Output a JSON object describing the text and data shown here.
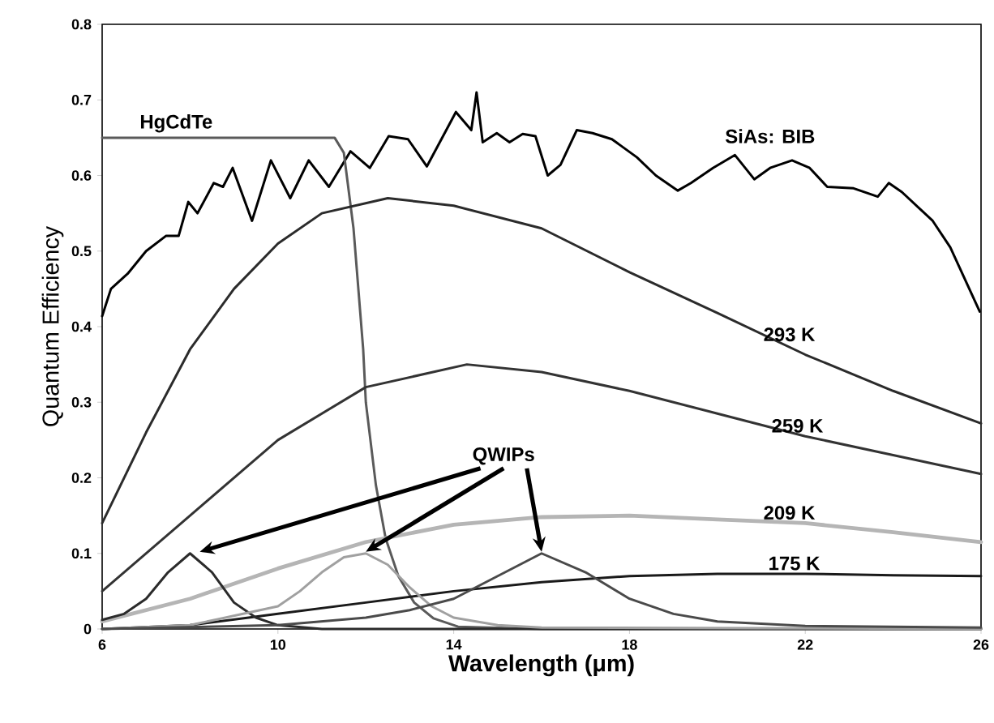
{
  "chart_data": {
    "type": "line",
    "xlabel": "Wavelength (μm)",
    "ylabel": "Quantum Efficiency",
    "xlim": [
      6,
      26
    ],
    "ylim": [
      0,
      0.8
    ],
    "xticks": [
      6,
      10,
      14,
      18,
      22,
      26
    ],
    "yticks": [
      0,
      0.1,
      0.2,
      0.3,
      0.4,
      0.5,
      0.6,
      0.7,
      0.8
    ],
    "marker": "none",
    "line_style": "solid",
    "annotations": [
      {
        "text": "QWIPs",
        "x": 12,
        "y": 0.1
      }
    ],
    "series": [
      {
        "name": "SiAs: BIB",
        "color": "#000000",
        "x": [
          6,
          6.2,
          6.58,
          7.0,
          7.45,
          7.74,
          7.96,
          8.17,
          8.54,
          8.75,
          8.97,
          9.41,
          9.84,
          10.28,
          10.7,
          11.16,
          11.65,
          12.09,
          12.52,
          12.96,
          13.39,
          14.05,
          14.4,
          14.52,
          14.66,
          14.98,
          15.27,
          15.57,
          15.86,
          16.14,
          16.43,
          16.8,
          17.16,
          17.6,
          18.17,
          18.6,
          19.1,
          19.4,
          19.9,
          20.4,
          20.84,
          21.2,
          21.7,
          22.1,
          22.5,
          23.1,
          23.65,
          23.9,
          24.2,
          24.9,
          25.3,
          25.97
        ],
        "values": [
          0.414,
          0.45,
          0.47,
          0.5,
          0.52,
          0.52,
          0.565,
          0.55,
          0.59,
          0.585,
          0.61,
          0.54,
          0.62,
          0.57,
          0.62,
          0.585,
          0.632,
          0.61,
          0.652,
          0.648,
          0.612,
          0.684,
          0.66,
          0.71,
          0.644,
          0.656,
          0.644,
          0.655,
          0.652,
          0.6,
          0.614,
          0.66,
          0.656,
          0.648,
          0.624,
          0.6,
          0.58,
          0.59,
          0.61,
          0.627,
          0.595,
          0.61,
          0.62,
          0.61,
          0.585,
          0.583,
          0.572,
          0.59,
          0.578,
          0.54,
          0.505,
          0.42
        ]
      },
      {
        "name": "HgCdTe",
        "color": "#5a5a5a",
        "x": [
          6,
          11.29,
          11.5,
          11.72,
          11.94,
          12.0,
          12.23,
          12.45,
          12.74,
          13.1,
          13.54,
          14.1,
          16,
          20,
          26
        ],
        "values": [
          0.65,
          0.65,
          0.63,
          0.53,
          0.37,
          0.3,
          0.19,
          0.12,
          0.07,
          0.035,
          0.014,
          0.003,
          0,
          0,
          0
        ]
      },
      {
        "name": "293 K",
        "color": "#2b2b2b",
        "x": [
          6,
          7,
          8,
          9,
          10,
          11,
          12.5,
          14,
          16,
          18,
          20,
          22,
          24,
          26
        ],
        "values": [
          0.14,
          0.26,
          0.37,
          0.45,
          0.51,
          0.55,
          0.57,
          0.56,
          0.53,
          0.472,
          0.418,
          0.363,
          0.315,
          0.272
        ]
      },
      {
        "name": "259 K",
        "color": "#333333",
        "x": [
          6,
          8,
          10,
          12,
          14.3,
          16,
          18,
          20,
          22,
          24,
          26
        ],
        "values": [
          0.05,
          0.15,
          0.25,
          0.32,
          0.35,
          0.34,
          0.315,
          0.285,
          0.255,
          0.23,
          0.205
        ]
      },
      {
        "name": "209 K",
        "color": "#b5b5b5",
        "x": [
          6,
          8,
          10,
          12,
          14,
          16,
          18,
          20,
          22,
          24,
          26
        ],
        "values": [
          0.01,
          0.04,
          0.08,
          0.115,
          0.138,
          0.148,
          0.15,
          0.145,
          0.14,
          0.128,
          0.115
        ]
      },
      {
        "name": "175 K",
        "color": "#1a1a1a",
        "x": [
          6,
          8,
          10,
          12,
          14,
          16,
          18,
          20,
          22,
          24,
          26
        ],
        "values": [
          0,
          0.005,
          0.02,
          0.035,
          0.05,
          0.062,
          0.07,
          0.073,
          0.073,
          0.071,
          0.07
        ]
      },
      {
        "color": "#2b2b2b",
        "x": [
          6,
          6.5,
          7,
          7.5,
          8,
          8.5,
          9,
          9.5,
          10,
          11,
          26
        ],
        "values": [
          0.012,
          0.02,
          0.04,
          0.075,
          0.1,
          0.075,
          0.035,
          0.015,
          0.005,
          0,
          0
        ]
      },
      {
        "color": "#a0a0a0",
        "x": [
          6,
          8,
          10,
          10.5,
          11,
          11.5,
          12,
          12.5,
          13,
          13.5,
          14,
          15,
          16,
          26
        ],
        "values": [
          0,
          0.005,
          0.03,
          0.05,
          0.075,
          0.095,
          0.1,
          0.085,
          0.055,
          0.03,
          0.015,
          0.005,
          0.002,
          0
        ]
      },
      {
        "color": "#4a4a4a",
        "x": [
          6,
          10,
          12,
          13,
          14,
          15,
          16,
          17,
          18,
          19,
          20,
          22,
          26
        ],
        "values": [
          0,
          0.005,
          0.015,
          0.025,
          0.04,
          0.07,
          0.1,
          0.075,
          0.04,
          0.02,
          0.01,
          0.004,
          0.002
        ]
      }
    ]
  }
}
